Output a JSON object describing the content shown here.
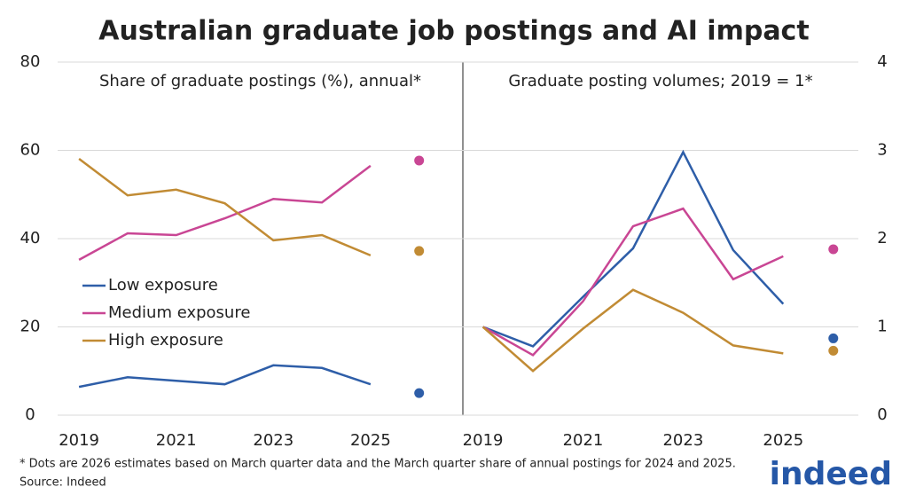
{
  "title": "Australian graduate job postings and AI impact",
  "footnote": "* Dots are 2026 estimates based on March quarter data and the March quarter share of annual postings for 2024 and 2025.",
  "source": "Source: Indeed",
  "logo": "indeed",
  "chart_data": [
    {
      "type": "line",
      "subtitle": "Share of graduate postings (%), annual*",
      "x": [
        2019,
        2020,
        2021,
        2022,
        2023,
        2024,
        2025
      ],
      "xlim": [
        2018.56,
        2026.9
      ],
      "xticks": [
        2019,
        2021,
        2023,
        2025
      ],
      "ylim": [
        0,
        80
      ],
      "yticks": [
        0,
        20,
        40,
        60,
        80
      ],
      "yaxis_side": "left",
      "grid": true,
      "legend": "lower left",
      "estimate_x": 2026,
      "series": [
        {
          "name": "Low exposure",
          "color": "#2e5ea8",
          "values": [
            6.4,
            8.6,
            7.8,
            7.0,
            11.3,
            10.7,
            7.0
          ],
          "estimate": 5.0
        },
        {
          "name": "Medium exposure",
          "color": "#c94694",
          "values": [
            35.2,
            41.2,
            40.8,
            44.6,
            49.0,
            48.2,
            56.5
          ],
          "estimate": 57.7
        },
        {
          "name": "High exposure",
          "color": "#c18b34",
          "values": [
            58.1,
            49.8,
            51.1,
            48.0,
            39.6,
            40.8,
            36.2
          ],
          "estimate": 37.2
        }
      ]
    },
    {
      "type": "line",
      "subtitle": "Graduate posting volumes; 2019 = 1*",
      "x": [
        2019,
        2020,
        2021,
        2022,
        2023,
        2024,
        2025
      ],
      "xlim": [
        2018.6,
        2026.5
      ],
      "xticks": [
        2019,
        2021,
        2023,
        2025
      ],
      "ylim": [
        0,
        4
      ],
      "yticks": [
        0,
        1,
        2,
        3,
        4
      ],
      "yaxis_side": "right",
      "grid": true,
      "estimate_x": 2026,
      "series": [
        {
          "color": "#2e5ea8",
          "values": [
            1.0,
            0.78,
            1.34,
            1.89,
            2.98,
            1.87,
            1.26
          ],
          "estimate": 0.87
        },
        {
          "color": "#c94694",
          "values": [
            1.0,
            0.68,
            1.29,
            2.14,
            2.34,
            1.54,
            1.8
          ],
          "estimate": 1.88
        },
        {
          "color": "#c18b34",
          "values": [
            1.0,
            0.5,
            0.98,
            1.42,
            1.16,
            0.79,
            0.7
          ],
          "estimate": 0.73
        }
      ]
    }
  ]
}
